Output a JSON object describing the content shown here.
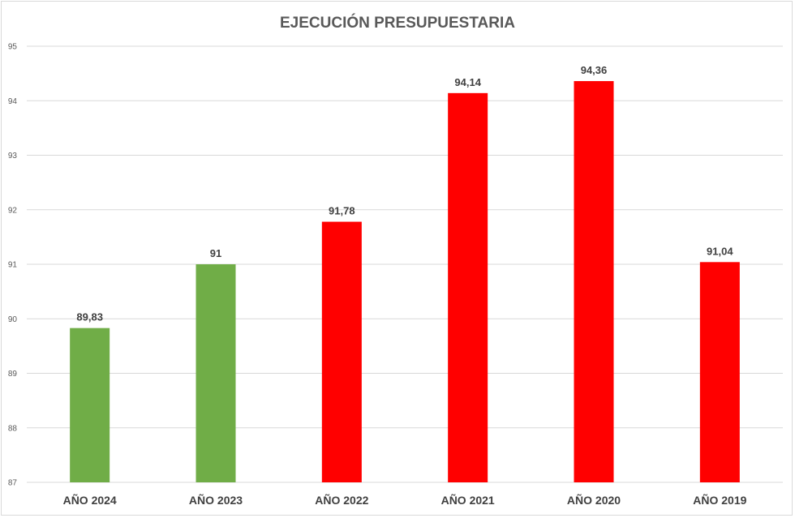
{
  "chart_data": {
    "type": "bar",
    "title": "EJECUCIÓN PRESUPUESTARIA",
    "categories": [
      "AÑO 2024",
      "AÑO 2023",
      "AÑO 2022",
      "AÑO 2021",
      "AÑO 2020",
      "AÑO 2019"
    ],
    "values": [
      89.83,
      91,
      91.78,
      94.14,
      94.36,
      91.04
    ],
    "data_labels": [
      "89,83",
      "91",
      "91,78",
      "94,14",
      "94,36",
      "91,04"
    ],
    "bar_colors": [
      "#70ad47",
      "#70ad47",
      "#ff0000",
      "#ff0000",
      "#ff0000",
      "#ff0000"
    ],
    "ylim": [
      87,
      95
    ],
    "yticks": [
      87,
      88,
      89,
      90,
      91,
      92,
      93,
      94,
      95
    ],
    "grid": true,
    "xlabel": "",
    "ylabel": ""
  }
}
